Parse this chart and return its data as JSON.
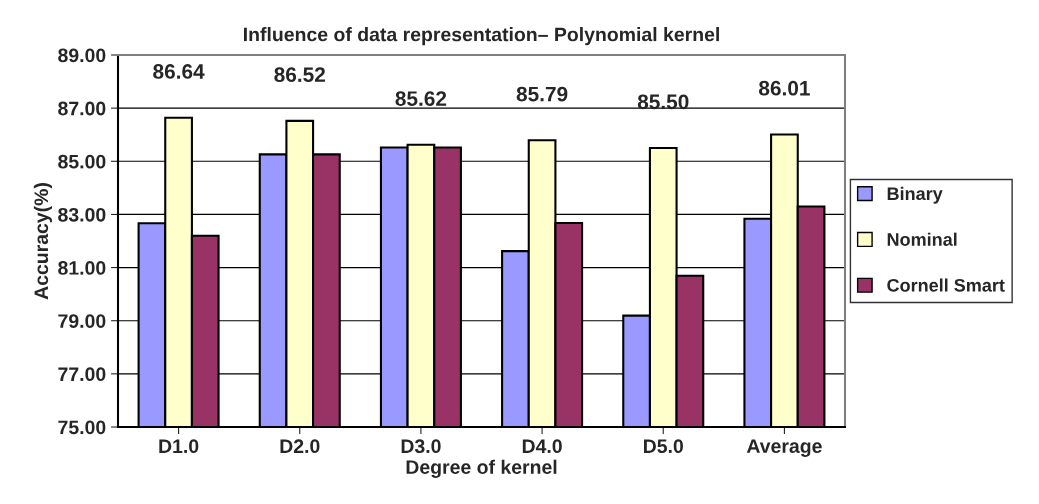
{
  "chart_data": {
    "type": "bar",
    "title": "Influence of data representation– Polynomial kernel",
    "xlabel": "Degree of kernel",
    "ylabel": "Accuracy(%)",
    "categories": [
      "D1.0",
      "D2.0",
      "D3.0",
      "D4.0",
      "D5.0",
      "Average"
    ],
    "series": [
      {
        "name": "Binary",
        "color": "#9999ff",
        "values": [
          82.67,
          85.26,
          85.52,
          81.62,
          79.19,
          82.84
        ]
      },
      {
        "name": "Nominal",
        "color": "#ffffcc",
        "values": [
          86.64,
          86.52,
          85.62,
          85.79,
          85.5,
          86.01
        ],
        "value_labels": [
          "86.64",
          "86.52",
          "85.62",
          "85.79",
          "85.50",
          "86.01"
        ]
      },
      {
        "name": "Cornell Smart",
        "color": "#993366",
        "values": [
          82.2,
          85.26,
          85.52,
          82.68,
          80.69,
          83.3
        ]
      }
    ],
    "ylim": [
      75,
      89
    ],
    "yticks": [
      {
        "value": 75,
        "label": "75.00"
      },
      {
        "value": 77,
        "label": "77.00"
      },
      {
        "value": 79,
        "label": "79.00"
      },
      {
        "value": 81,
        "label": "81.00"
      },
      {
        "value": 83,
        "label": "83.00"
      },
      {
        "value": 85,
        "label": "85.00"
      },
      {
        "value": 87,
        "label": "87.00"
      },
      {
        "value": 89,
        "label": "89.00"
      }
    ],
    "grid": "y",
    "legend": "right"
  }
}
